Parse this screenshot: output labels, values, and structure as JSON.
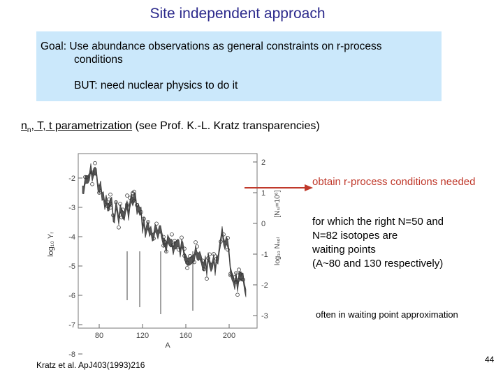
{
  "slide": {
    "title": "Site independent approach",
    "goal_line1": "Goal: Use abundance observations as general constraints on r-process",
    "goal_line2": "conditions",
    "goal_but": "BUT: need nuclear physics to do it",
    "param_main_prefix": "n",
    "param_main_sub": "n",
    "param_main_rest": ", T, t parametrization",
    "param_note": " (see Prof. K.-L. Kratz transparencies)",
    "obtain_text": "obtain r-process conditions needed",
    "forwhich_line1": "for which the right N=50 and",
    "forwhich_line2": "N=82 isotopes are",
    "forwhich_line3": "waiting points",
    "forwhich_line4": "(A~80 and 130 respectively)",
    "often_text": "often in waiting point approximation",
    "citation": "Kratz et al. ApJ403(1993)216",
    "page_number": "44",
    "arrow_color": "#c0392b"
  },
  "figure": {
    "left_ticks": [
      "-2",
      "-3",
      "-4",
      "-5",
      "-6",
      "-7",
      "-8"
    ],
    "right_ticks": [
      "2",
      "1",
      "0",
      "-1",
      "-2",
      "-3"
    ],
    "x_ticks": [
      "80",
      "120",
      "160",
      "200"
    ],
    "xlabel": "A",
    "ylabel_left": "log₁₀ Yᵣ",
    "ylabel_right_top": "[Nₛᵢ=10⁶]",
    "ylabel_right_bottom": "log₁₀ Nₛₒₗ"
  }
}
